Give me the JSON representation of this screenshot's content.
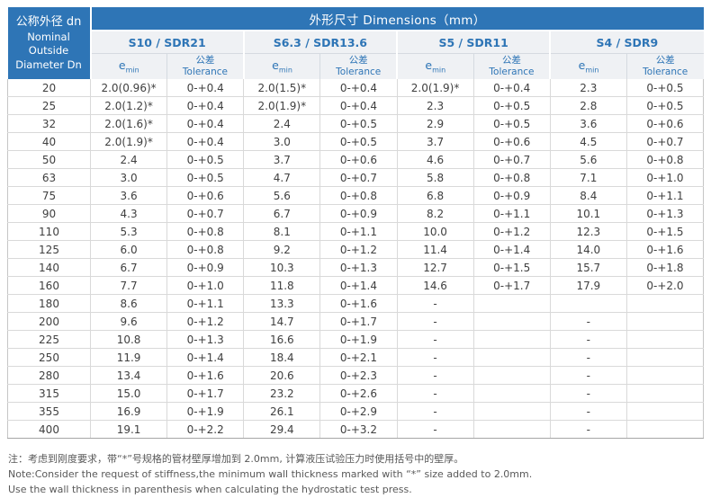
{
  "table": {
    "corner": {
      "line1": "公称外径 dn",
      "line2": "Nominal",
      "line3": "Outside",
      "line4": "Diameter Dn"
    },
    "main_header": "外形尺寸 Dimensions（mm）",
    "groups": [
      {
        "label": "S10 / SDR21"
      },
      {
        "label": "S6.3 / SDR13.6"
      },
      {
        "label": "S5 / SDR11"
      },
      {
        "label": "S4 / SDR9"
      }
    ],
    "sub": {
      "emin_base": "e",
      "emin_sub": "min",
      "tol_cn": "公差",
      "tol_en": "Tolerance"
    },
    "rows": [
      [
        "20",
        "2.0(0.96)*",
        "0-+0.4",
        "2.0(1.5)*",
        "0-+0.4",
        "2.0(1.9)*",
        "0-+0.4",
        "2.3",
        "0-+0.5"
      ],
      [
        "25",
        "2.0(1.2)*",
        "0-+0.4",
        "2.0(1.9)*",
        "0-+0.4",
        "2.3",
        "0-+0.5",
        "2.8",
        "0-+0.5"
      ],
      [
        "32",
        "2.0(1.6)*",
        "0-+0.4",
        "2.4",
        "0-+0.5",
        "2.9",
        "0-+0.5",
        "3.6",
        "0-+0.6"
      ],
      [
        "40",
        "2.0(1.9)*",
        "0-+0.4",
        "3.0",
        "0-+0.5",
        "3.7",
        "0-+0.6",
        "4.5",
        "0-+0.7"
      ],
      [
        "50",
        "2.4",
        "0-+0.5",
        "3.7",
        "0-+0.6",
        "4.6",
        "0-+0.7",
        "5.6",
        "0-+0.8"
      ],
      [
        "63",
        "3.0",
        "0-+0.5",
        "4.7",
        "0-+0.7",
        "5.8",
        "0-+0.8",
        "7.1",
        "0-+1.0"
      ],
      [
        "75",
        "3.6",
        "0-+0.6",
        "5.6",
        "0-+0.8",
        "6.8",
        "0-+0.9",
        "8.4",
        "0-+1.1"
      ],
      [
        "90",
        "4.3",
        "0-+0.7",
        "6.7",
        "0-+0.9",
        "8.2",
        "0-+1.1",
        "10.1",
        "0-+1.3"
      ],
      [
        "110",
        "5.3",
        "0-+0.8",
        "8.1",
        "0-+1.1",
        "10.0",
        "0-+1.2",
        "12.3",
        "0-+1.5"
      ],
      [
        "125",
        "6.0",
        "0-+0.8",
        "9.2",
        "0-+1.2",
        "11.4",
        "0-+1.4",
        "14.0",
        "0-+1.6"
      ],
      [
        "140",
        "6.7",
        "0-+0.9",
        "10.3",
        "0-+1.3",
        "12.7",
        "0-+1.5",
        "15.7",
        "0-+1.8"
      ],
      [
        "160",
        "7.7",
        "0-+1.0",
        "11.8",
        "0-+1.4",
        "14.6",
        "0-+1.7",
        "17.9",
        "0-+2.0"
      ],
      [
        "180",
        "8.6",
        "0-+1.1",
        "13.3",
        "0-+1.6",
        "-",
        "",
        "",
        ""
      ],
      [
        "200",
        "9.6",
        "0-+1.2",
        "14.7",
        "0-+1.7",
        "-",
        "",
        "-",
        ""
      ],
      [
        "225",
        "10.8",
        "0-+1.3",
        "16.6",
        "0-+1.9",
        "-",
        "",
        "-",
        ""
      ],
      [
        "250",
        "11.9",
        "0-+1.4",
        "18.4",
        "0-+2.1",
        "-",
        "",
        "-",
        ""
      ],
      [
        "280",
        "13.4",
        "0-+1.6",
        "20.6",
        "0-+2.3",
        "-",
        "",
        "-",
        ""
      ],
      [
        "315",
        "15.0",
        "0-+1.7",
        "23.2",
        "0-+2.6",
        "-",
        "",
        "-",
        ""
      ],
      [
        "355",
        "16.9",
        "0-+1.9",
        "26.1",
        "0-+2.9",
        "-",
        "",
        "-",
        ""
      ],
      [
        "400",
        "19.1",
        "0-+2.2",
        "29.4",
        "0-+3.2",
        "-",
        "",
        "-",
        ""
      ]
    ]
  },
  "notes": {
    "cn": "注：考虑到刚度要求，带“*”号规格的管材壁厚增加到 2.0mm, 计算液压试验压力时使用括号中的壁厚。",
    "en1": "Note:Consider the request of  stiffness,the minimum wall thickness marked with  “*” size added to 2.0mm.",
    "en2": "Use the wall thickness in  parenthesis when calculating the hydrostatic test press."
  },
  "colors": {
    "header_blue": "#2e75b6",
    "subheader_bg": "#eff1f4",
    "body_text": "#404040",
    "grid_border": "#d9d9d9",
    "note_text": "#595959"
  }
}
